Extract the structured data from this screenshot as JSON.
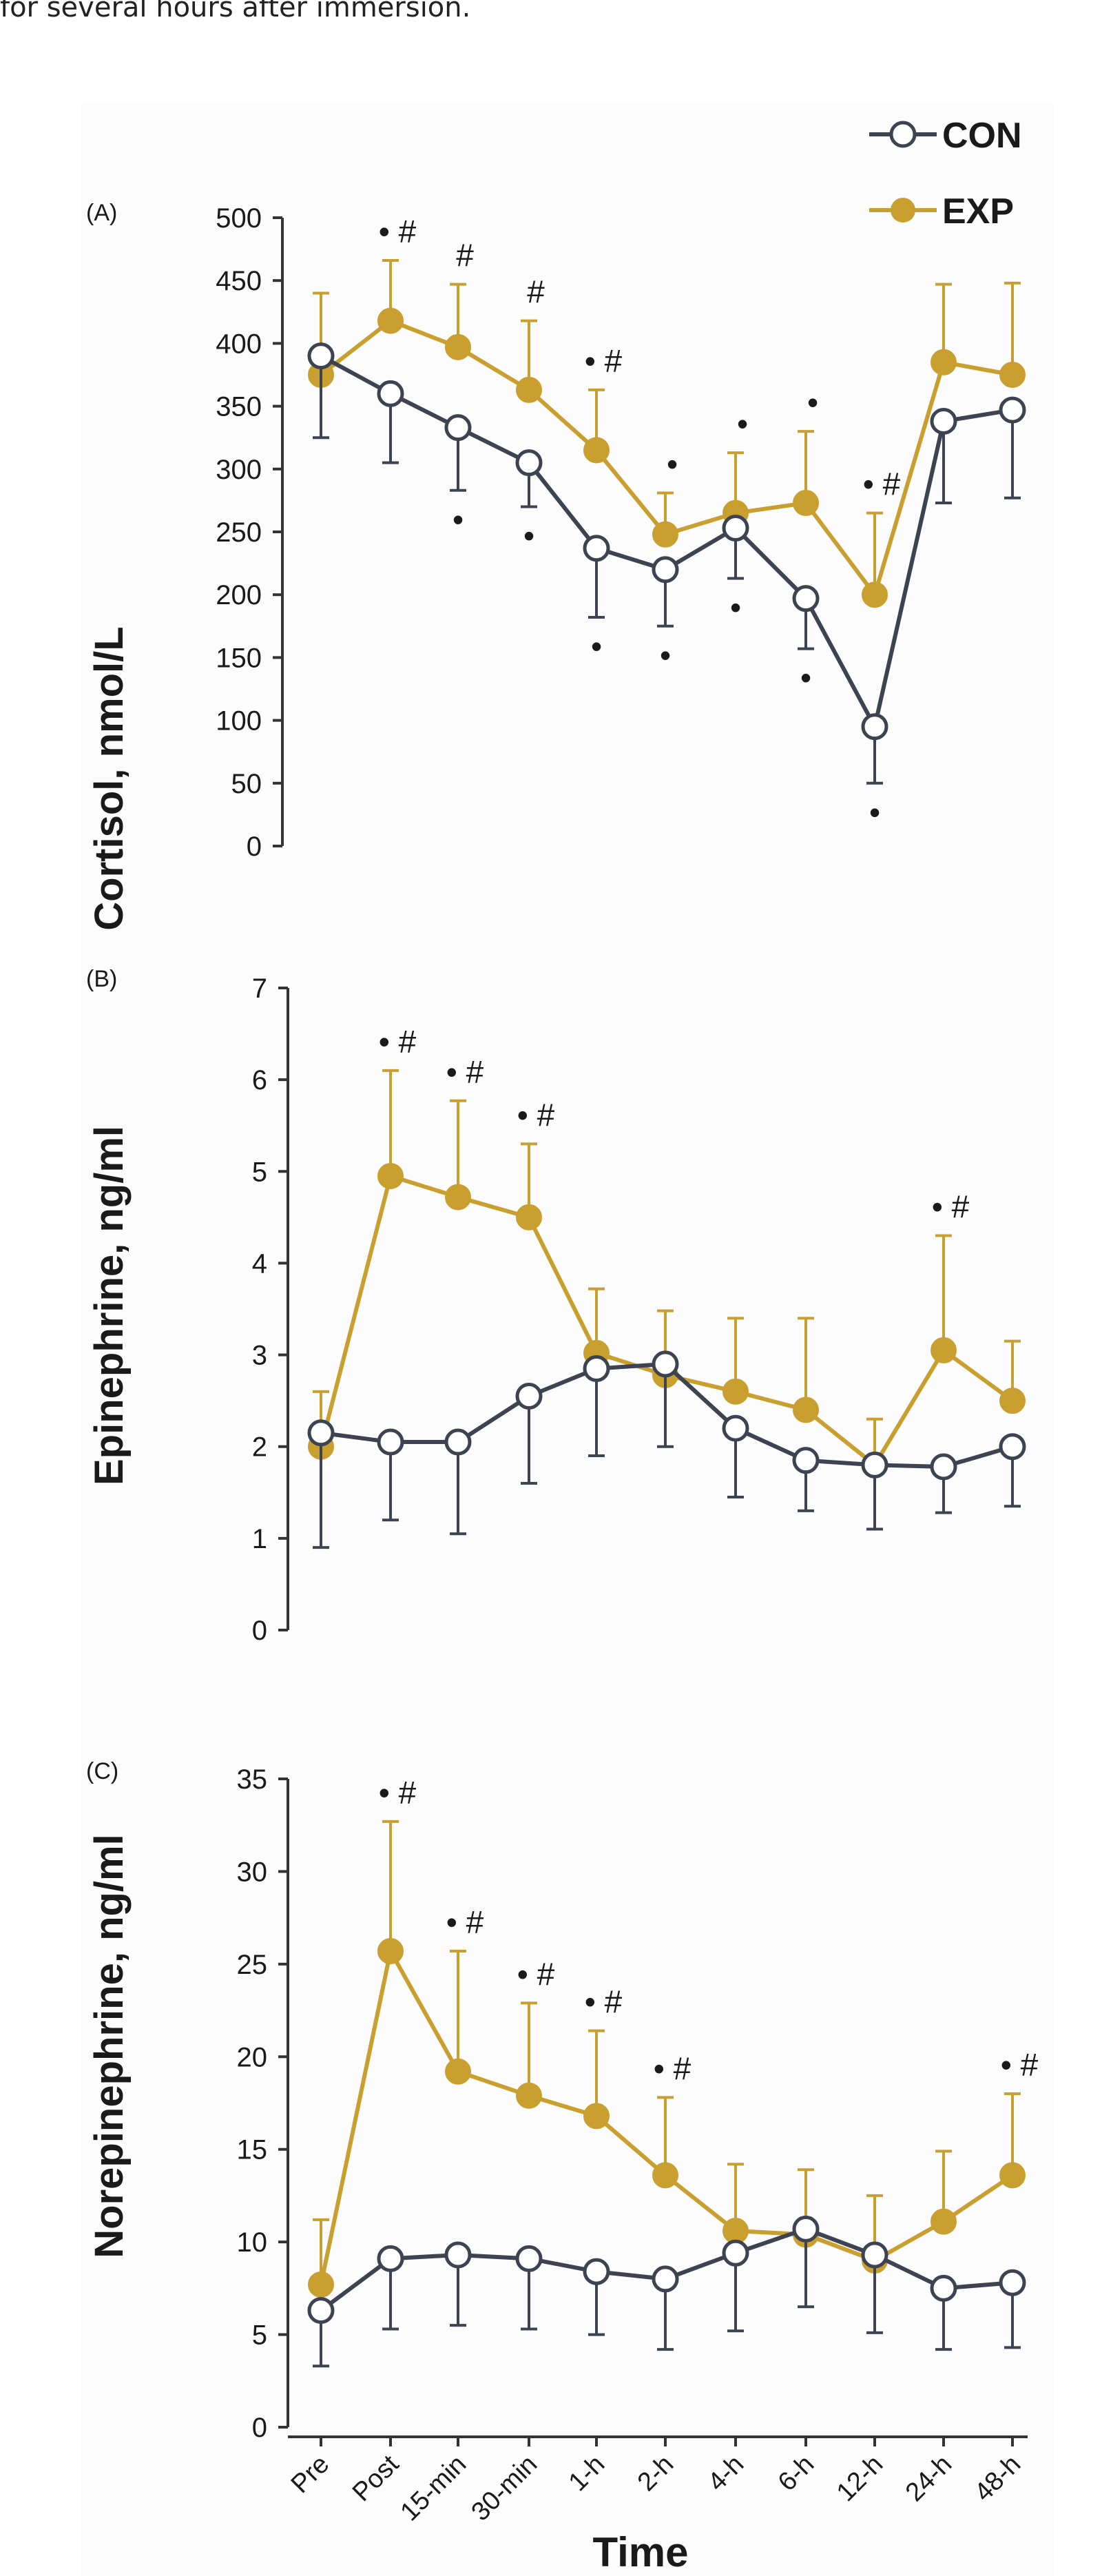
{
  "caption": "for several hours after immersion.",
  "colors": {
    "con": "#3d4350",
    "exp": "#c9a030",
    "axis": "#333333"
  },
  "legend": [
    {
      "series": "CON",
      "label": "CON"
    },
    {
      "series": "EXP",
      "label": "EXP"
    }
  ],
  "x_title": "Time",
  "chart_data": [
    {
      "type": "line",
      "panel_label": "(A)",
      "ylabel": "Cortisol, nmol/L",
      "ylim": [
        0,
        500
      ],
      "yticks": [
        "0",
        "50",
        "100",
        "150",
        "200",
        "250",
        "300",
        "350",
        "400",
        "450",
        "500"
      ],
      "categories": [
        "Pre",
        "Post",
        "15-min",
        "30-min",
        "1-h",
        "2-h",
        "4-h",
        "6-h",
        "12-h",
        "24-h",
        "48-h"
      ],
      "series": [
        {
          "name": "CON",
          "values": [
            390,
            360,
            333,
            305,
            237,
            220,
            253,
            197,
            95,
            338,
            347
          ],
          "error": [
            65,
            55,
            50,
            35,
            55,
            45,
            40,
            40,
            45,
            65,
            70
          ],
          "error_dir": "down"
        },
        {
          "name": "EXP",
          "values": [
            375,
            418,
            397,
            363,
            315,
            248,
            265,
            273,
            200,
            385,
            375
          ],
          "error": [
            65,
            48,
            50,
            55,
            48,
            33,
            48,
            57,
            65,
            62,
            73
          ],
          "error_dir": "up"
        }
      ],
      "annotations_above": [
        {
          "category": "Post",
          "text": "• #"
        },
        {
          "category": "15-min",
          "text": "#"
        },
        {
          "category": "30-min",
          "text": "#"
        },
        {
          "category": "1-h",
          "text": "• #"
        },
        {
          "category": "2-h",
          "text": "•"
        },
        {
          "category": "4-h",
          "text": "•"
        },
        {
          "category": "6-h",
          "text": "•"
        },
        {
          "category": "12-h",
          "text": "• #"
        }
      ],
      "annotations_below": [
        {
          "category": "15-min",
          "text": "•"
        },
        {
          "category": "30-min",
          "text": "•"
        },
        {
          "category": "1-h",
          "text": "•"
        },
        {
          "category": "2-h",
          "text": "•"
        },
        {
          "category": "4-h",
          "text": "•"
        },
        {
          "category": "6-h",
          "text": "•"
        },
        {
          "category": "12-h",
          "text": "•"
        }
      ]
    },
    {
      "type": "line",
      "panel_label": "(B)",
      "ylabel": "Epinephrine, ng/ml",
      "ylim": [
        0,
        7
      ],
      "yticks": [
        "0",
        "1",
        "2",
        "3",
        "4",
        "5",
        "6",
        "7"
      ],
      "categories": [
        "Pre",
        "Post",
        "15-min",
        "30-min",
        "1-h",
        "2-h",
        "4-h",
        "6-h",
        "12-h",
        "24-h",
        "48-h"
      ],
      "series": [
        {
          "name": "CON",
          "values": [
            2.15,
            2.05,
            2.05,
            2.55,
            2.85,
            2.9,
            2.2,
            1.85,
            1.8,
            1.78,
            2.0
          ],
          "error": [
            1.25,
            0.85,
            1.0,
            0.95,
            0.95,
            0.9,
            0.75,
            0.55,
            0.7,
            0.5,
            0.65
          ],
          "error_dir": "down"
        },
        {
          "name": "EXP",
          "values": [
            2.0,
            4.95,
            4.72,
            4.5,
            3.02,
            2.78,
            2.6,
            2.4,
            1.8,
            3.05,
            2.5
          ],
          "error": [
            0.6,
            1.15,
            1.05,
            0.8,
            0.7,
            0.7,
            0.8,
            1.0,
            0.5,
            1.25,
            0.65
          ],
          "error_dir": "up"
        }
      ],
      "annotations_above": [
        {
          "category": "Post",
          "text": "• #"
        },
        {
          "category": "15-min",
          "text": "• #"
        },
        {
          "category": "30-min",
          "text": "• #"
        },
        {
          "category": "24-h",
          "text": "• #"
        }
      ],
      "annotations_below": []
    },
    {
      "type": "line",
      "panel_label": "(C)",
      "ylabel": "Norepinephrine, ng/ml",
      "ylim": [
        0,
        35
      ],
      "yticks": [
        "0",
        "5",
        "10",
        "15",
        "20",
        "25",
        "30",
        "35"
      ],
      "categories": [
        "Pre",
        "Post",
        "15-min",
        "30-min",
        "1-h",
        "2-h",
        "4-h",
        "6-h",
        "12-h",
        "24-h",
        "48-h"
      ],
      "series": [
        {
          "name": "CON",
          "values": [
            6.3,
            9.1,
            9.3,
            9.1,
            8.4,
            8.0,
            9.4,
            10.7,
            9.3,
            7.5,
            7.8
          ],
          "error": [
            3.0,
            3.8,
            3.8,
            3.8,
            3.4,
            3.8,
            4.2,
            4.2,
            4.2,
            3.3,
            3.5
          ],
          "error_dir": "down"
        },
        {
          "name": "EXP",
          "values": [
            7.7,
            25.7,
            19.2,
            17.9,
            16.8,
            13.6,
            10.6,
            10.4,
            9.0,
            11.1,
            13.6
          ],
          "error": [
            3.5,
            7.0,
            6.5,
            5.0,
            4.6,
            4.2,
            3.6,
            3.5,
            3.5,
            3.8,
            4.4
          ],
          "error_dir": "up"
        }
      ],
      "annotations_above": [
        {
          "category": "Post",
          "text": "• #"
        },
        {
          "category": "15-min",
          "text": "• #"
        },
        {
          "category": "30-min",
          "text": "• #"
        },
        {
          "category": "1-h",
          "text": "• #"
        },
        {
          "category": "2-h",
          "text": "• #"
        },
        {
          "category": "48-h",
          "text": "• #"
        }
      ],
      "annotations_below": []
    }
  ]
}
